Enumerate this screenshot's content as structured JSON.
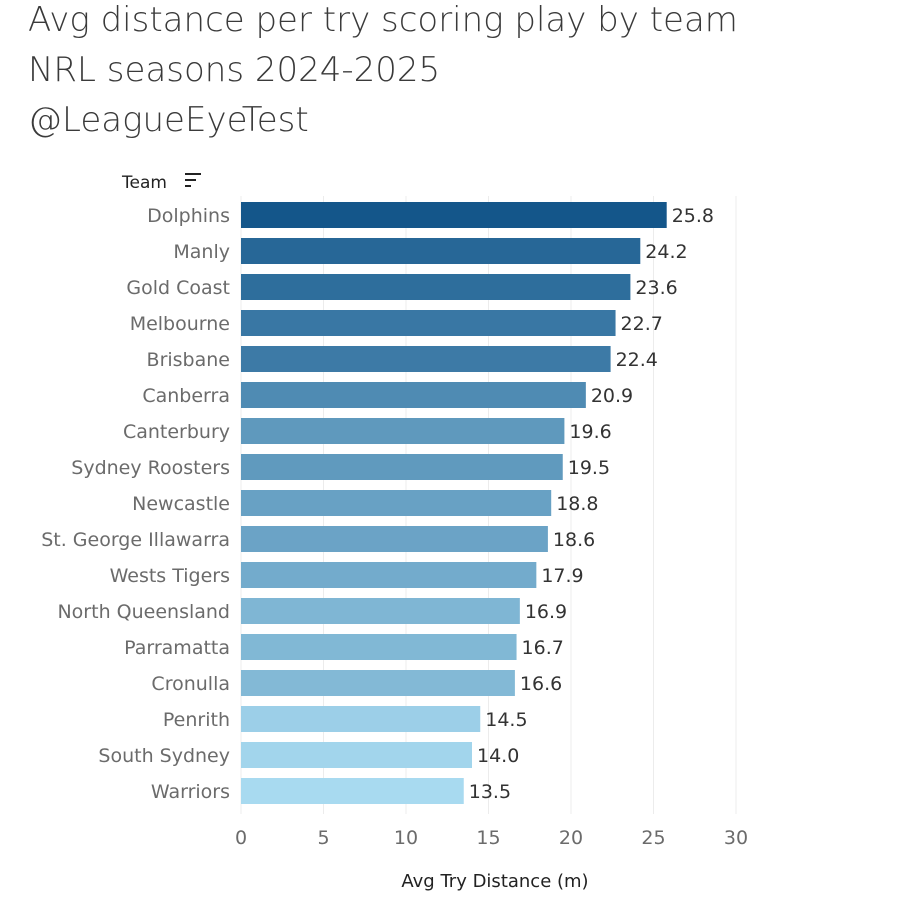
{
  "title_lines": [
    "Avg distance per try scoring play by team",
    "NRL seasons 2024-2025",
    "@LeagueEyeTest"
  ],
  "column_header": "Team",
  "sort_icon": "sort-descending-icon",
  "chart_data": {
    "type": "bar",
    "orientation": "horizontal",
    "categories": [
      "Dolphins",
      "Manly",
      "Gold Coast",
      "Melbourne",
      "Brisbane",
      "Canberra",
      "Canterbury",
      "Sydney Roosters",
      "Newcastle",
      "St. George Illawarra",
      "Wests Tigers",
      "North Queensland",
      "Parramatta",
      "Cronulla",
      "Penrith",
      "South Sydney",
      "Warriors"
    ],
    "values": [
      25.8,
      24.2,
      23.6,
      22.7,
      22.4,
      20.9,
      19.6,
      19.5,
      18.8,
      18.6,
      17.9,
      16.9,
      16.7,
      16.6,
      14.5,
      14.0,
      13.5
    ],
    "value_labels": [
      "25.8",
      "24.2",
      "23.6",
      "22.7",
      "22.4",
      "20.9",
      "19.6",
      "19.5",
      "18.8",
      "18.6",
      "17.9",
      "16.9",
      "16.7",
      "16.6",
      "14.5",
      "14.0",
      "13.5"
    ],
    "xlabel": "Avg Try Distance (m)",
    "xlim": [
      0,
      30
    ],
    "xticks": [
      0,
      5,
      10,
      15,
      20,
      25,
      30
    ],
    "xtick_labels": [
      "0",
      "5",
      "10",
      "15",
      "20",
      "25",
      "30"
    ],
    "grid": true,
    "color_scale": [
      "#a8daf0",
      "#14568a"
    ]
  }
}
